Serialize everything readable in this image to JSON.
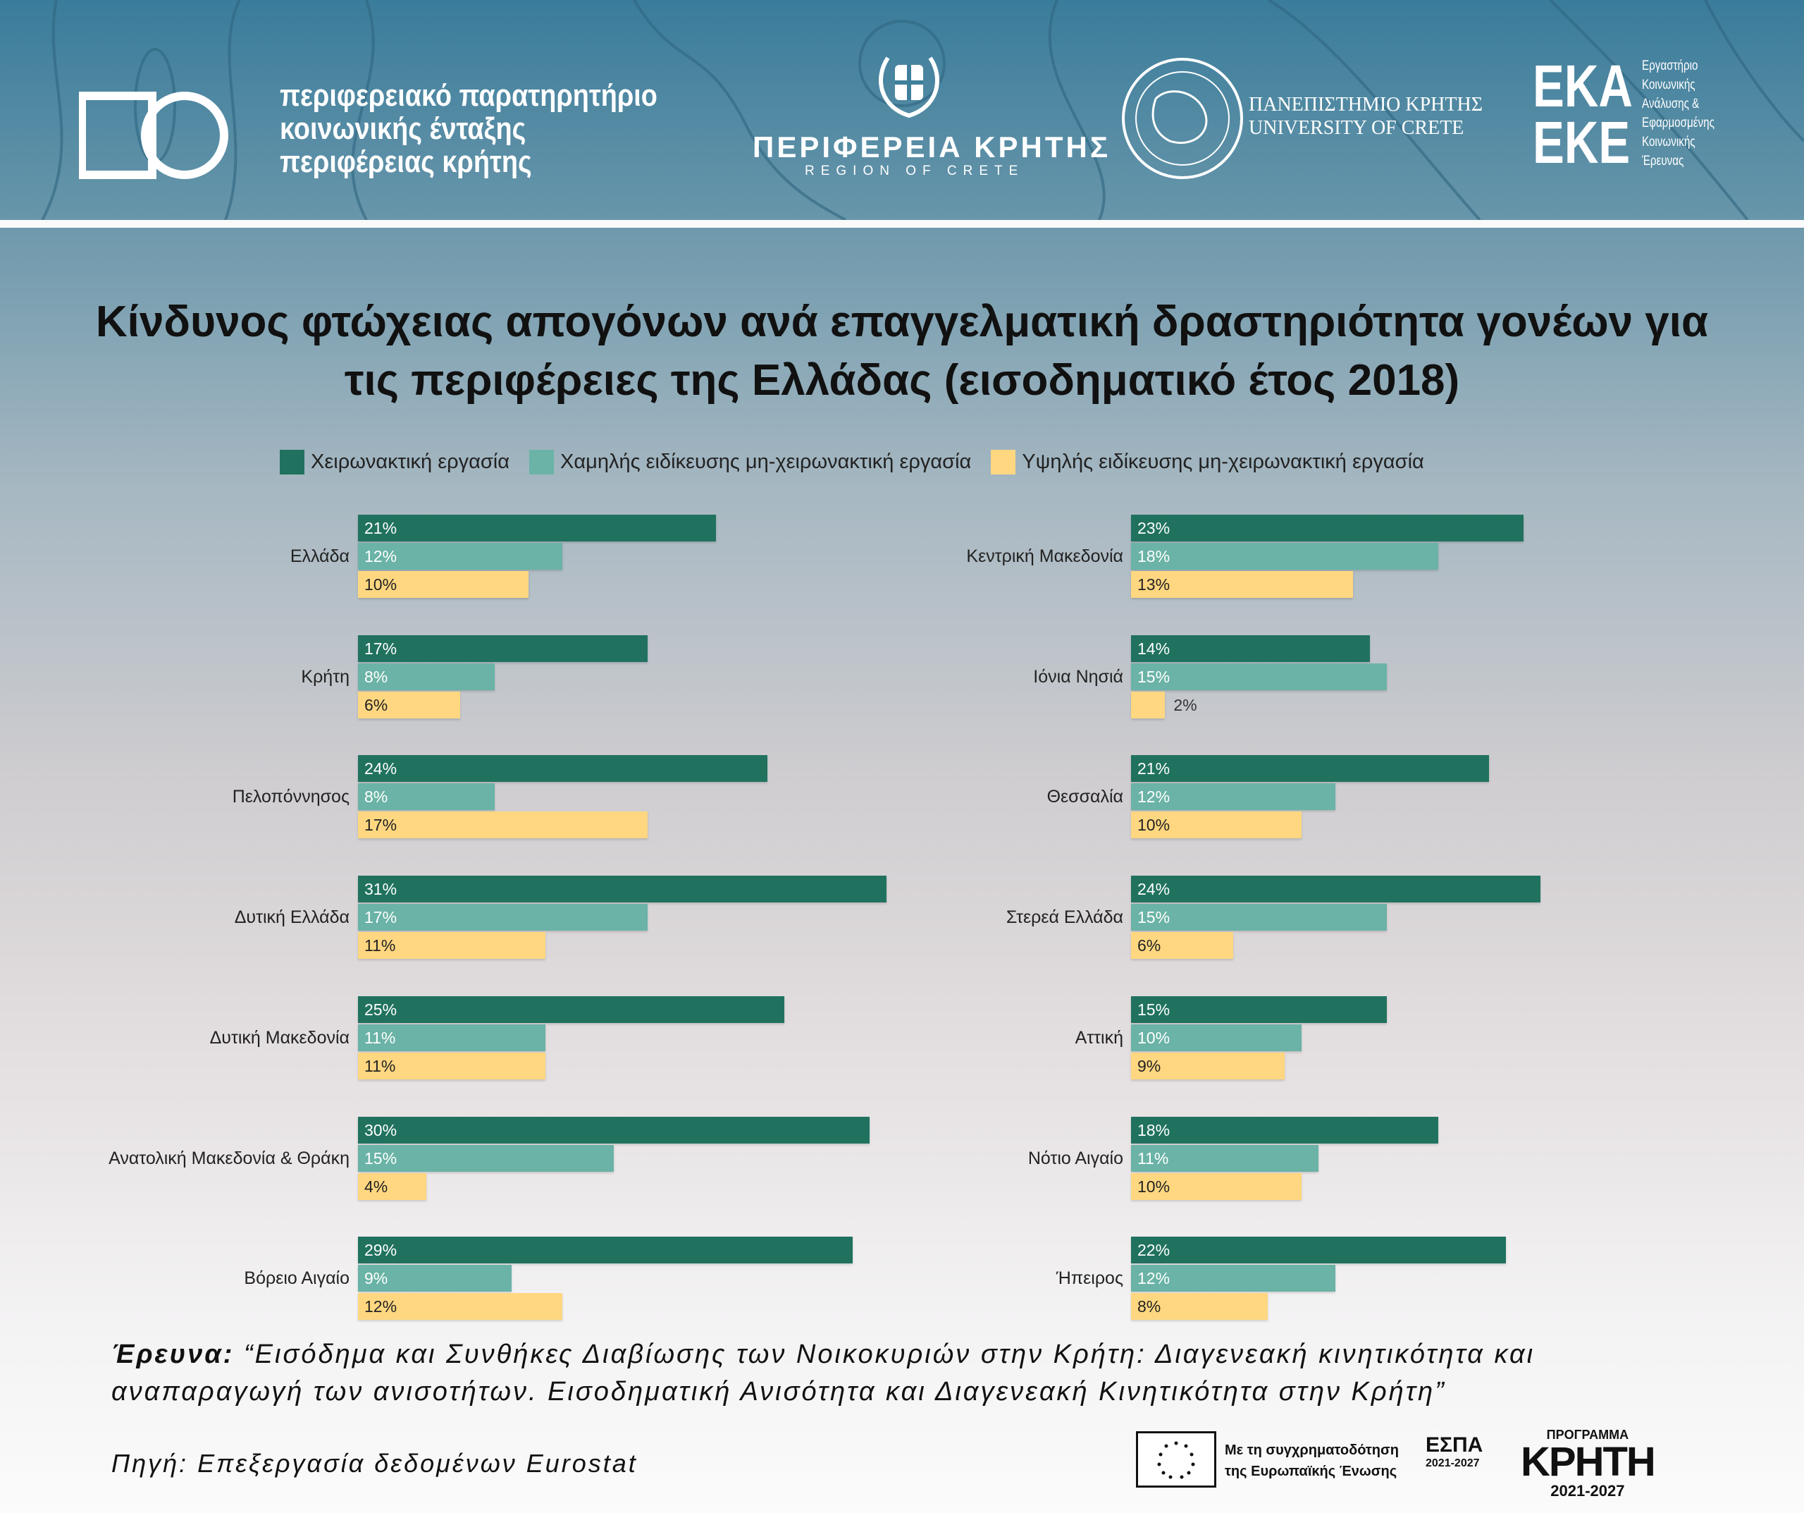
{
  "header": {
    "observatory_lines": [
      "περιφερειακό παρατηρητήριο",
      "κοινωνικής ένταξης",
      "περιφέρειας κρήτης"
    ],
    "region_name": "ΠΕΡΙΦΕΡΕΙΑ ΚΡΗΤΗΣ",
    "region_sub": "REGION OF CRETE",
    "university_gr": "ΠΑΝΕΠΙΣΤΗΜΙΟ ΚΡΗΤΗΣ",
    "university_en": "UNIVERSITY OF CRETE",
    "eka_logo": "ΕΚΑ ΕΚΕ",
    "eka_lines": [
      "Εργαστήριο",
      "Κοινωνικής",
      "Ανάλυσης &",
      "Εφαρμοσμένης",
      "Κοινωνικής",
      "Έρευνας"
    ]
  },
  "chart_data": {
    "type": "bar",
    "orientation": "horizontal",
    "title_lines": [
      "Κίνδυνος φτώχειας απογόνων ανά επαγγελματική δραστηριότητα γονέων για",
      "τις περιφέρειες της Ελλάδας (εισοδηματικό έτος 2018)"
    ],
    "unit": "%",
    "legend_placement": "top",
    "series": [
      {
        "name": "Χειρωνακτική εργασία",
        "color": "#20725f"
      },
      {
        "name": "Χαμηλής ειδίκευσης μη-χειρωνακτική εργασία",
        "color": "#6ab3a6"
      },
      {
        "name": "Υψηλής ειδίκευσης μη-χειρωνακτική εργασία",
        "color": "#ffd780"
      }
    ],
    "panels": [
      {
        "categories": [
          {
            "name": "Ελλάδα",
            "values": [
              21,
              12,
              10
            ]
          },
          {
            "name": "Κρήτη",
            "values": [
              17,
              8,
              6
            ]
          },
          {
            "name": "Πελοπόννησος",
            "values": [
              24,
              8,
              17
            ]
          },
          {
            "name": "Δυτική Ελλάδα",
            "values": [
              31,
              17,
              11
            ]
          },
          {
            "name": "Δυτική Μακεδονία",
            "values": [
              25,
              11,
              11
            ]
          },
          {
            "name": "Ανατολική Μακεδονία & Θράκη",
            "values": [
              30,
              15,
              4
            ]
          },
          {
            "name": "Βόρειο Αιγαίο",
            "values": [
              29,
              9,
              12
            ]
          }
        ]
      },
      {
        "categories": [
          {
            "name": "Κεντρική Μακεδονία",
            "values": [
              23,
              18,
              13
            ]
          },
          {
            "name": "Ιόνια Νησιά",
            "values": [
              14,
              15,
              2
            ]
          },
          {
            "name": "Θεσσαλία",
            "values": [
              21,
              12,
              10
            ]
          },
          {
            "name": "Στερεά Ελλάδα",
            "values": [
              24,
              15,
              6
            ]
          },
          {
            "name": "Αττική",
            "values": [
              15,
              10,
              9
            ]
          },
          {
            "name": "Νότιο Αιγαίο",
            "values": [
              18,
              11,
              10
            ]
          },
          {
            "name": "Ήπειρος",
            "values": [
              22,
              12,
              8
            ]
          }
        ]
      }
    ]
  },
  "footer": {
    "research_label": "Έρευνα:",
    "research_text": "“Εισόδημα και Συνθήκες Διαβίωσης των Νοικοκυριών στην Κρήτη: Διαγενεακή κινητικότητα και αναπαραγωγή των ανισοτήτων. Εισοδηματική Ανισότητα και Διαγενεακή  Κινητικότητα στην Κρήτη”",
    "source": "Πηγή: Επεξεργασία δεδομένων Eurostat",
    "eu_text_lines": [
      "Με τη συγχρηματοδότηση",
      "της Ευρωπαϊκής Ένωσης"
    ],
    "espa": "ΕΣΠΑ",
    "espa_years": "2021-2027",
    "program_label": "ΠΡΟΓΡΑΜΜΑ",
    "program_name": "ΚΡΗΤΗ",
    "program_years": "2021-2027"
  }
}
